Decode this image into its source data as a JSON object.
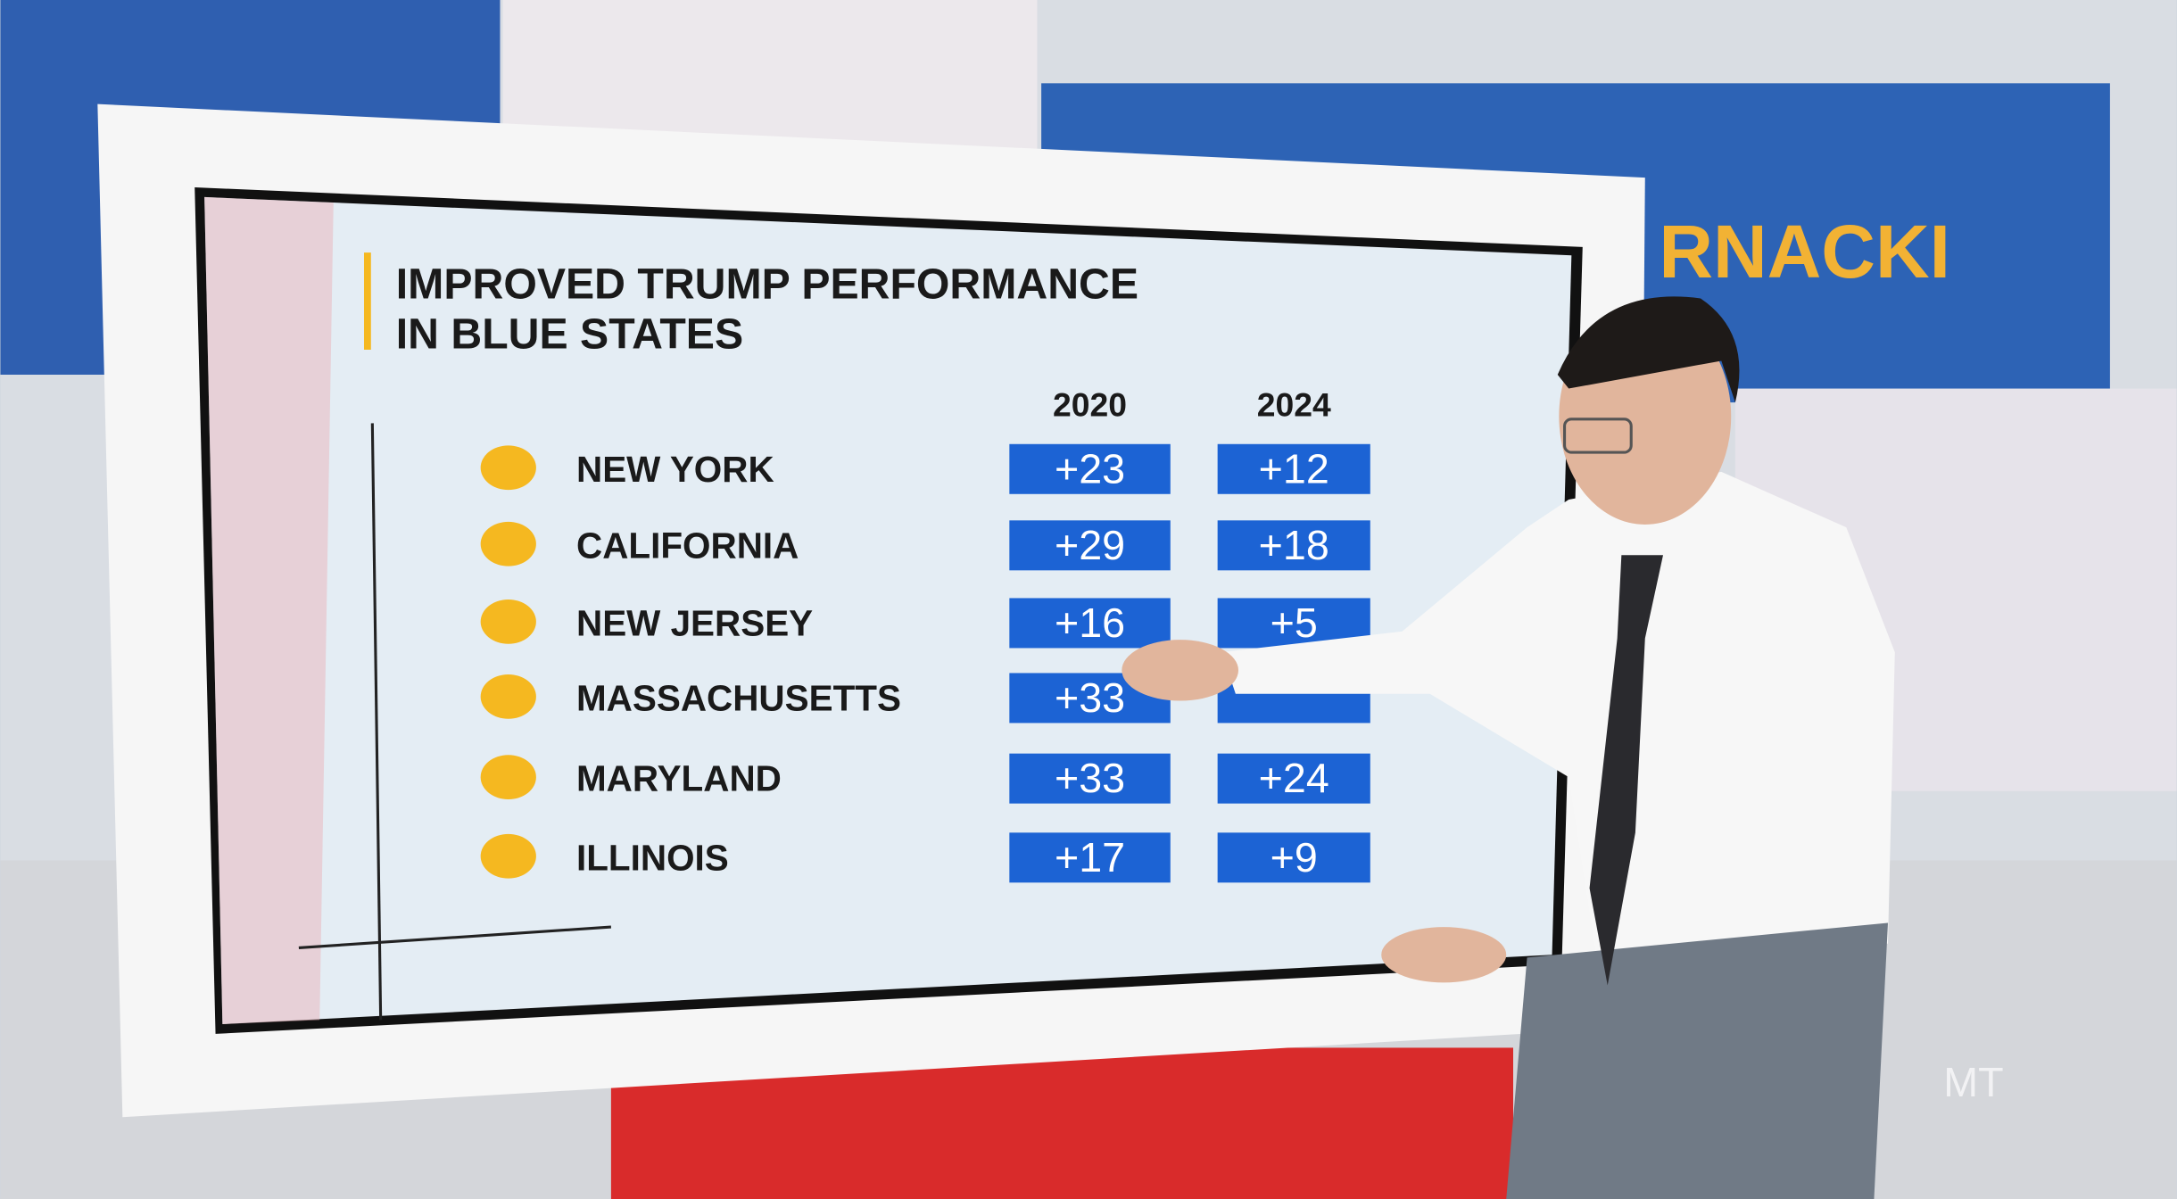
{
  "sign": "RNACKI",
  "logo": "MT",
  "table": {
    "title": [
      "IMPROVED TRUMP PERFORMANCE",
      "IN BLUE STATES"
    ],
    "columns": [
      "2020",
      "2024"
    ],
    "rows": [
      [
        "NEW YORK",
        "+23",
        "+12"
      ],
      [
        "CALIFORNIA",
        "+29",
        "+18"
      ],
      [
        "NEW JERSEY",
        "+16",
        "+5"
      ],
      [
        "MASSACHUSETTS",
        "+33",
        null
      ],
      [
        "MARYLAND",
        "+33",
        "+24"
      ],
      [
        "ILLINOIS",
        "+17",
        "+9"
      ]
    ]
  }
}
